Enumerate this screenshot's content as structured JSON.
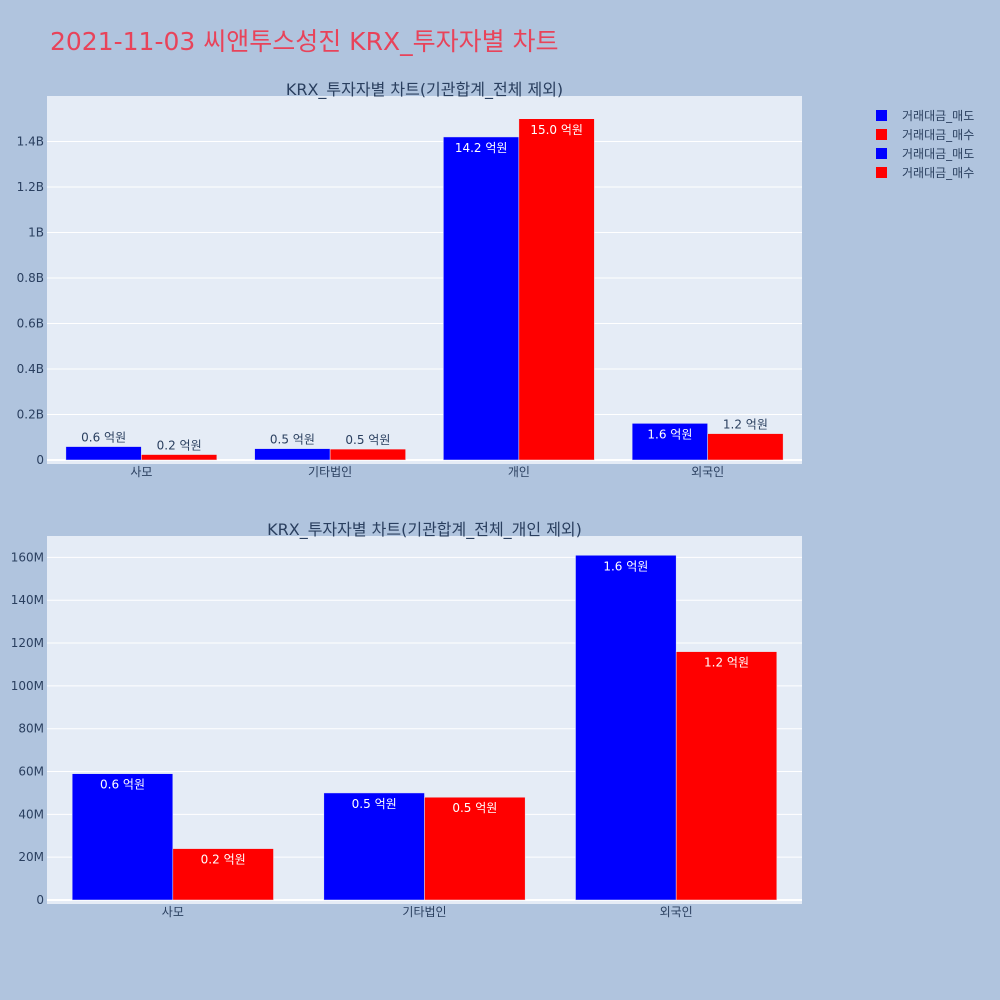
{
  "title": "2021-11-03 씨앤투스성진 KRX_투자자별 차트",
  "colors": {
    "sell": "#0000ff",
    "buy": "#ff0000",
    "plot_bg": "#e5ecf6",
    "page_bg": "#b0c4de",
    "title": "#e8435a"
  },
  "legend": [
    {
      "label": "거래대금_매도",
      "color": "#0000ff"
    },
    {
      "label": "거래대금_매수",
      "color": "#ff0000"
    },
    {
      "label": "거래대금_매도",
      "color": "#0000ff"
    },
    {
      "label": "거래대금_매수",
      "color": "#ff0000"
    }
  ],
  "chart_data": [
    {
      "type": "bar",
      "title": "KRX_투자자별 차트(기관합계_전체 제외)",
      "categories": [
        "사모",
        "기타법인",
        "개인",
        "외국인"
      ],
      "series": [
        {
          "name": "거래대금_매도",
          "color": "#0000ff",
          "values": [
            59000000,
            50000000,
            1420000000,
            161000000
          ],
          "labels": [
            "0.6 억원",
            "0.5 억원",
            "14.2 억원",
            "1.6 억원"
          ]
        },
        {
          "name": "거래대금_매수",
          "color": "#ff0000",
          "values": [
            24000000,
            48000000,
            1500000000,
            116000000
          ],
          "labels": [
            "0.2 억원",
            "0.5 억원",
            "15.0 억원",
            "1.2 억원"
          ]
        }
      ],
      "ylim": [
        0,
        1600000000
      ],
      "yticks": [
        0,
        200000000,
        400000000,
        600000000,
        800000000,
        1000000000,
        1200000000,
        1400000000
      ],
      "ytick_labels": [
        "0",
        "0.2B",
        "0.4B",
        "0.6B",
        "0.8B",
        "1B",
        "1.2B",
        "1.4B"
      ],
      "grid": true
    },
    {
      "type": "bar",
      "title": "KRX_투자자별 차트(기관합계_전체_개인 제외)",
      "categories": [
        "사모",
        "기타법인",
        "외국인"
      ],
      "series": [
        {
          "name": "거래대금_매도",
          "color": "#0000ff",
          "values": [
            59000000,
            50000000,
            161000000
          ],
          "labels": [
            "0.6 억원",
            "0.5 억원",
            "1.6 억원"
          ]
        },
        {
          "name": "거래대금_매수",
          "color": "#ff0000",
          "values": [
            24000000,
            48000000,
            116000000
          ],
          "labels": [
            "0.2 억원",
            "0.5 억원",
            "1.2 억원"
          ]
        }
      ],
      "ylim": [
        0,
        170000000
      ],
      "yticks": [
        0,
        20000000,
        40000000,
        60000000,
        80000000,
        100000000,
        120000000,
        140000000,
        160000000
      ],
      "ytick_labels": [
        "0",
        "20M",
        "40M",
        "60M",
        "80M",
        "100M",
        "120M",
        "140M",
        "160M"
      ],
      "grid": true
    }
  ]
}
